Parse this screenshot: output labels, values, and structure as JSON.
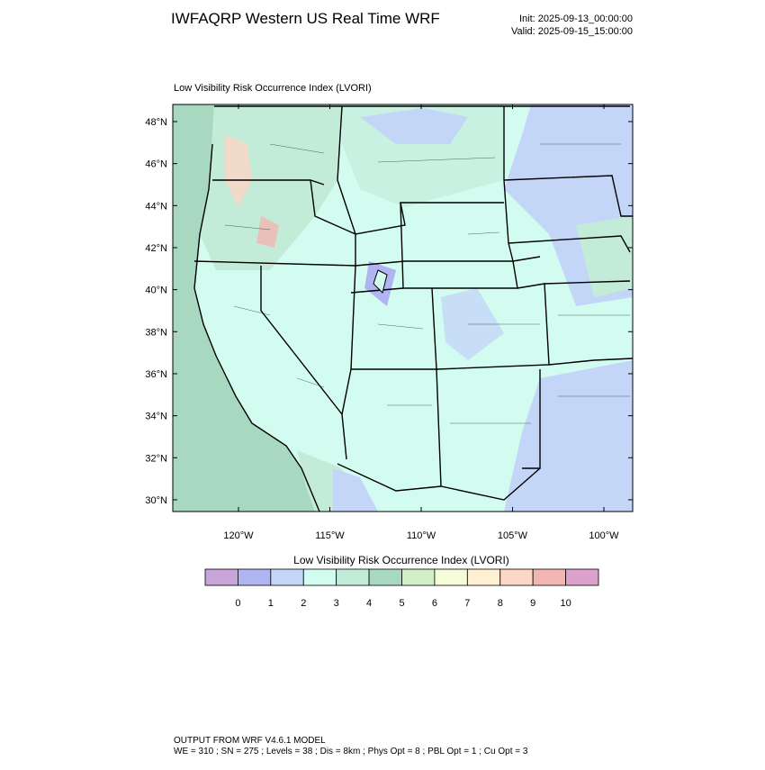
{
  "header": {
    "title": "IWFAQRP Western US Real Time WRF",
    "init": "Init: 2025-09-13_00:00:00",
    "valid": "Valid: 2025-09-15_15:00:00"
  },
  "map": {
    "title": "Low Visibility Risk Occurrence Index   (LVORI)",
    "lat_ticks": [
      {
        "value": 48,
        "label": "48°N"
      },
      {
        "value": 46,
        "label": "46°N"
      },
      {
        "value": 44,
        "label": "44°N"
      },
      {
        "value": 42,
        "label": "42°N"
      },
      {
        "value": 40,
        "label": "40°N"
      },
      {
        "value": 38,
        "label": "38°N"
      },
      {
        "value": 36,
        "label": "36°N"
      },
      {
        "value": 34,
        "label": "34°N"
      },
      {
        "value": 32,
        "label": "32°N"
      },
      {
        "value": 30,
        "label": "30°N"
      }
    ],
    "lon_ticks": [
      {
        "value": -120,
        "label": "120°W"
      },
      {
        "value": -115,
        "label": "115°W"
      },
      {
        "value": -110,
        "label": "110°W"
      },
      {
        "value": -105,
        "label": "105°W"
      },
      {
        "value": -100,
        "label": "100°W"
      }
    ]
  },
  "colorbar": {
    "title": "Low Visibility Risk Occurrence Index  (LVORI)",
    "colors": [
      "#c8a4d8",
      "#b0b4f0",
      "#c4d6f8",
      "#d2fcf0",
      "#c2ecd8",
      "#a8d8c0",
      "#d2f0c8",
      "#f4fcd8",
      "#fff0d2",
      "#fcd6c6",
      "#f2b6b2",
      "#dca2cc"
    ],
    "labels": [
      0,
      1,
      2,
      3,
      4,
      5,
      6,
      7,
      8,
      9,
      10
    ]
  },
  "footer": {
    "line1": "OUTPUT FROM WRF V4.6.1 MODEL",
    "line2": "WE = 310 ; SN = 275 ; Levels = 38 ; Dis = 8km ; Phys Opt = 8 ; PBL Opt = 1 ; Cu Opt = 3"
  }
}
